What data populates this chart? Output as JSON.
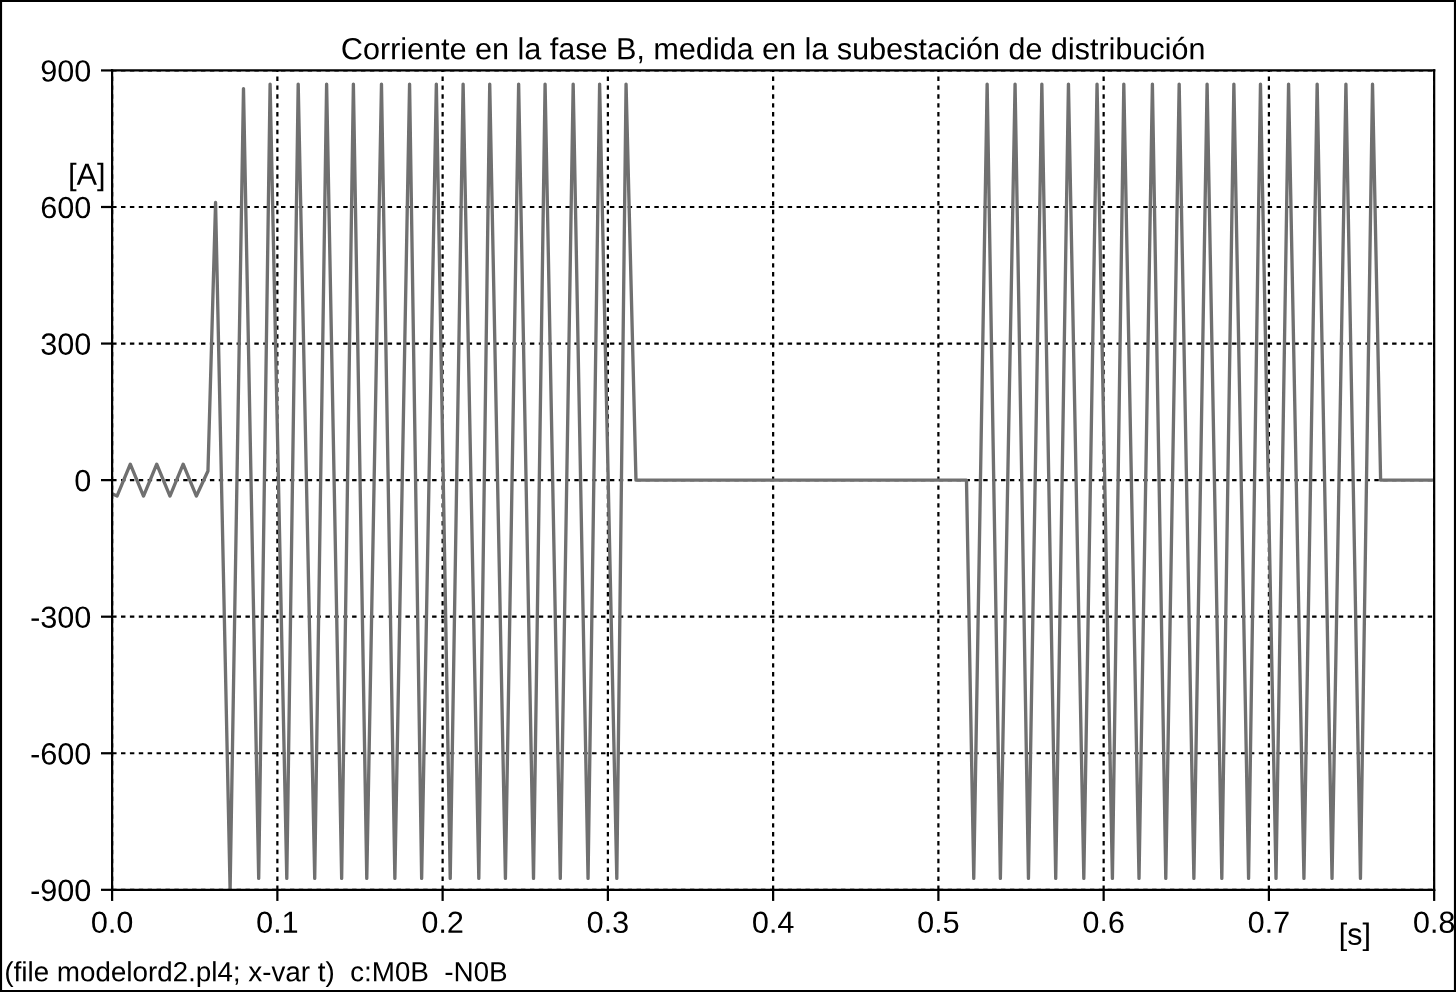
{
  "chart_data": {
    "type": "line",
    "title": "Corriente en la fase B, medida en la subestación de distribución",
    "xlabel": "[s]",
    "ylabel": "[A]",
    "annotations": [
      "(file modelord2.pl4; x-var t)  c:M0B  -N0B"
    ],
    "xlim": [
      0,
      0.8
    ],
    "ylim": [
      -900,
      900
    ],
    "xticks": [
      {
        "value": 0,
        "label": "0.0"
      },
      0.1,
      0.2,
      0.3,
      0.4,
      0.5,
      0.6,
      0.7,
      0.8
    ],
    "yticks": [
      -900,
      -600,
      -300,
      0,
      300,
      600,
      900
    ],
    "grid": true,
    "marker": "none",
    "line_style": "solid",
    "series": [
      {
        "color": "#707070",
        "x": [
          0,
          0.003,
          0.011,
          0.019,
          0.027,
          0.035,
          0.043,
          0.051,
          0.058,
          0.0626,
          0.0714,
          0.0795,
          0.0887,
          0.0956,
          0.1057,
          0.1126,
          0.1226,
          0.1298,
          0.1389,
          0.146,
          0.1541,
          0.163,
          0.1711,
          0.18,
          0.1873,
          0.1962,
          0.2046,
          0.2124,
          0.2219,
          0.2285,
          0.238,
          0.246,
          0.255,
          0.262,
          0.2712,
          0.279,
          0.288,
          0.295,
          0.3054,
          0.311,
          0.317,
          0.4,
          0.517,
          0.5214,
          0.5295,
          0.5375,
          0.5464,
          0.5545,
          0.5626,
          0.571,
          0.5787,
          0.588,
          0.596,
          0.6053,
          0.6122,
          0.6214,
          0.6295,
          0.6376,
          0.6457,
          0.6546,
          0.6626,
          0.6715,
          0.6788,
          0.6877,
          0.6949,
          0.7043,
          0.7119,
          0.7212,
          0.7292,
          0.7382,
          0.7466,
          0.7554,
          0.7627,
          0.7676,
          0.8
        ],
        "values": [
          -30,
          -35,
          35,
          -35,
          35,
          -35,
          35,
          -35,
          20,
          610,
          -900,
          860,
          -875,
          870,
          -875,
          870,
          -875,
          870,
          -875,
          870,
          -875,
          870,
          -875,
          870,
          -875,
          870,
          -875,
          870,
          -875,
          870,
          -875,
          870,
          -875,
          870,
          -875,
          870,
          -875,
          870,
          -875,
          870,
          0,
          0,
          0,
          -875,
          870,
          -875,
          870,
          -875,
          870,
          -875,
          870,
          -875,
          870,
          -875,
          870,
          -875,
          870,
          -875,
          870,
          -875,
          870,
          -875,
          870,
          -875,
          870,
          -875,
          870,
          -875,
          870,
          -875,
          870,
          -875,
          870,
          0,
          0
        ]
      }
    ]
  }
}
